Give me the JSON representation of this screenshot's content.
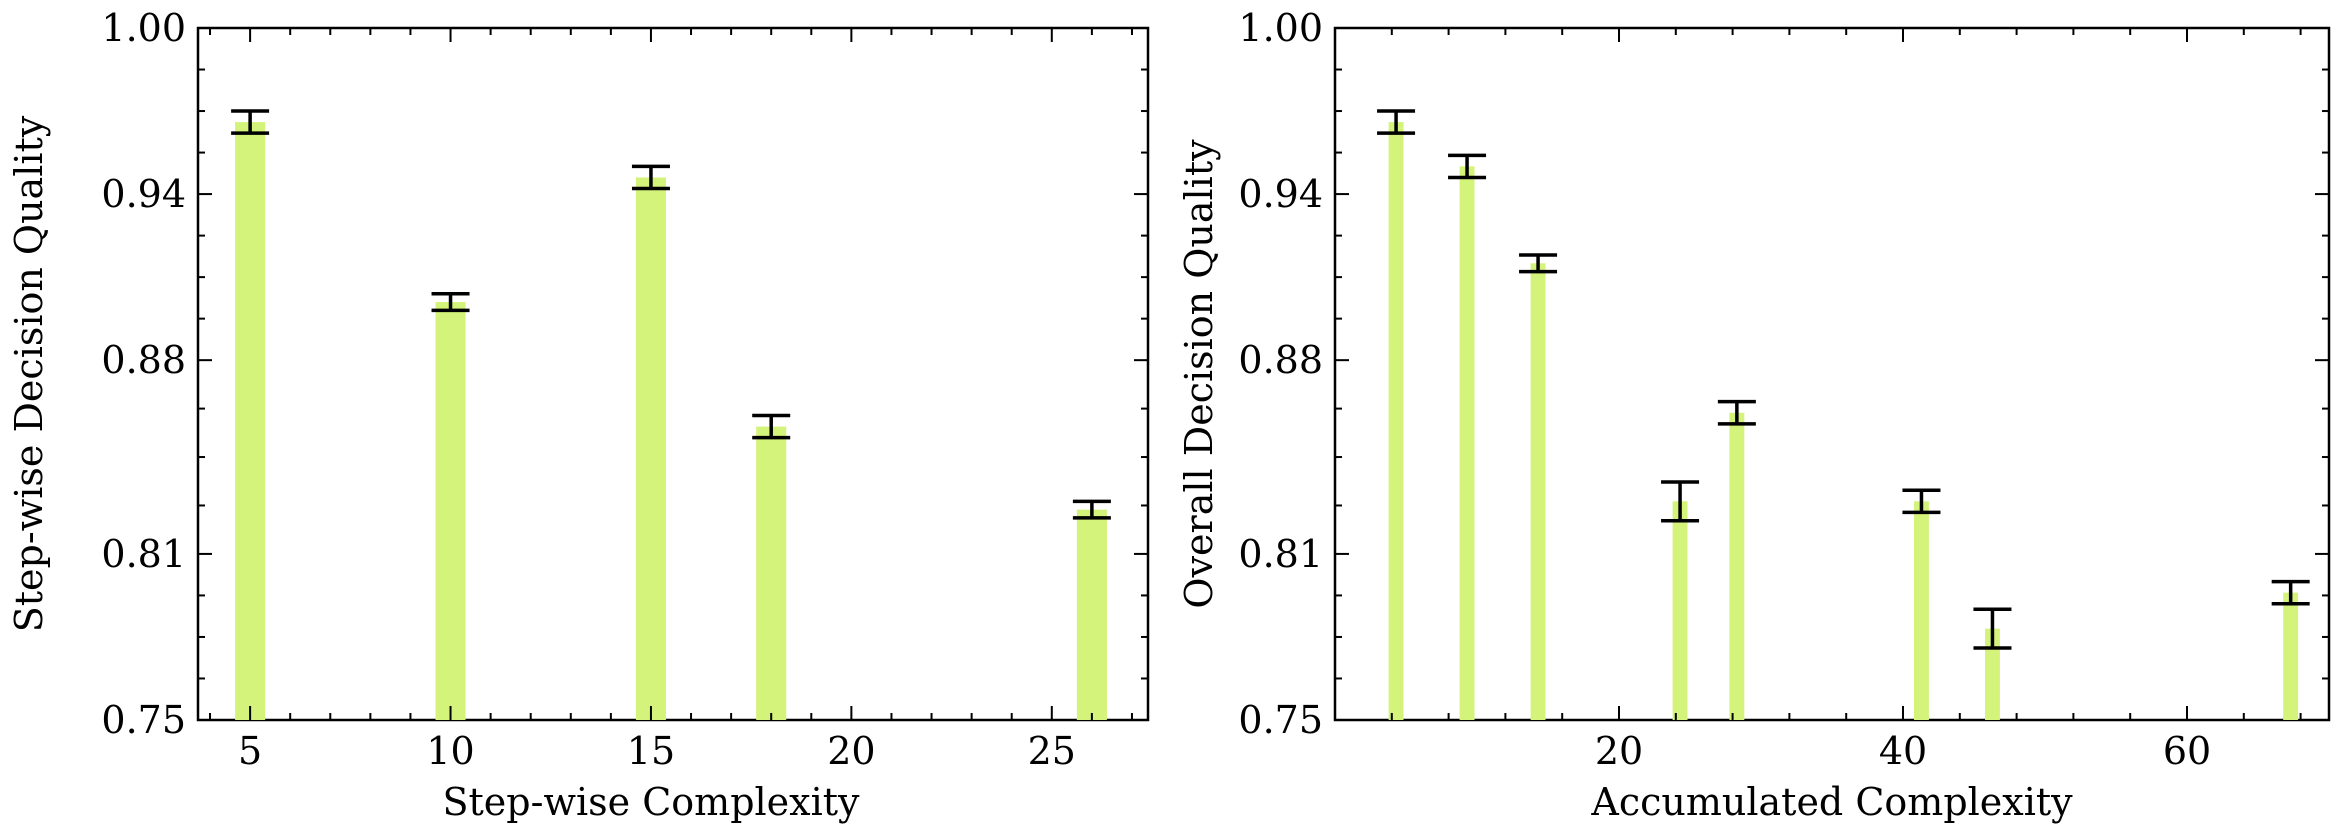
{
  "chart_data": [
    {
      "type": "bar",
      "xlabel": "Step-wise Complexity",
      "ylabel": "Step-wise Decision Quality",
      "xlim": [
        3.7,
        27.4
      ],
      "ylim": [
        0.75,
        1.0
      ],
      "xticks": [
        5,
        10,
        15,
        20,
        25
      ],
      "yticks": [
        0.75,
        0.81,
        0.88,
        0.94,
        1.0
      ],
      "ytick_labels": [
        "0.75",
        "0.81",
        "0.88",
        "0.94",
        "1.00"
      ],
      "bar_width": 0.75,
      "bar_color": "#d4f37a",
      "x": [
        5,
        10,
        15,
        18,
        26
      ],
      "values": [
        0.966,
        0.901,
        0.946,
        0.856,
        0.826
      ],
      "errors": [
        0.004,
        0.003,
        0.004,
        0.004,
        0.003
      ]
    },
    {
      "type": "bar",
      "xlabel": "Accumulated Complexity",
      "ylabel": "Overall Decision Quality",
      "xlim": [
        0,
        70
      ],
      "ylim": [
        0.75,
        1.0
      ],
      "xticks": [
        20,
        40,
        60
      ],
      "yticks": [
        0.75,
        0.81,
        0.88,
        0.94,
        1.0
      ],
      "ytick_labels": [
        "0.75",
        "0.81",
        "0.88",
        "0.94",
        "1.00"
      ],
      "bar_width": 1.05,
      "bar_color": "#d4f37a",
      "x": [
        4.3,
        9.3,
        14.3,
        24.3,
        28.3,
        41.3,
        46.3,
        67.3
      ],
      "values": [
        0.966,
        0.95,
        0.915,
        0.829,
        0.861,
        0.829,
        0.783,
        0.796
      ],
      "errors": [
        0.004,
        0.004,
        0.003,
        0.007,
        0.004,
        0.004,
        0.007,
        0.004
      ]
    }
  ]
}
